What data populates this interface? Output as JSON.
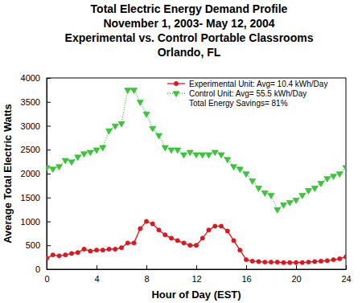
{
  "chart_data": {
    "type": "line",
    "title": "Total Electric Energy Demand Profile",
    "subtitle": [
      "November 1, 2003- May 12, 2004",
      "Experimental vs. Control Portable Classrooms",
      "Orlando, FL"
    ],
    "x_label": "Hour of Day (EST)",
    "y_label": "Average Total Electric Watts",
    "x": [
      0,
      0.5,
      1,
      1.5,
      2,
      2.5,
      3,
      3.5,
      4,
      4.5,
      5,
      5.5,
      6,
      6.5,
      7,
      7.5,
      8,
      8.5,
      9,
      9.5,
      10,
      10.5,
      11,
      11.5,
      12,
      12.5,
      13,
      13.5,
      14,
      14.5,
      15,
      15.5,
      16,
      16.5,
      17,
      17.5,
      18,
      18.5,
      19,
      19.5,
      20,
      20.5,
      21,
      21.5,
      22,
      22.5,
      23,
      23.5,
      24
    ],
    "series": [
      {
        "name": "Experimental Unit: Avg= 10.4 kWh/Day",
        "color": "#e8141c",
        "marker": "circle",
        "line_style": "solid",
        "values": [
          230,
          300,
          280,
          300,
          330,
          350,
          420,
          380,
          400,
          400,
          420,
          420,
          450,
          550,
          550,
          850,
          1000,
          950,
          820,
          720,
          650,
          600,
          550,
          500,
          500,
          650,
          820,
          900,
          900,
          800,
          600,
          400,
          200,
          170,
          160,
          150,
          150,
          150,
          140,
          140,
          140,
          140,
          150,
          160,
          170,
          180,
          200,
          220,
          260
        ]
      },
      {
        "name": "Control Unit: Avg= 55.5 kWh/Day",
        "color": "#33cc33",
        "marker": "triangle-down",
        "line_style": "dotted",
        "values": [
          2130,
          2100,
          2150,
          2280,
          2250,
          2350,
          2420,
          2450,
          2500,
          2550,
          2900,
          3000,
          3050,
          3750,
          3750,
          3500,
          3250,
          2950,
          2800,
          2550,
          2500,
          2500,
          2400,
          2450,
          2400,
          2400,
          2400,
          2450,
          2400,
          2300,
          2150,
          2100,
          2000,
          1850,
          1700,
          1600,
          1550,
          1250,
          1350,
          1400,
          1450,
          1550,
          1650,
          1700,
          1800,
          1900,
          1950,
          2000,
          2130
        ]
      }
    ],
    "annotations": [
      "Total Energy Savings= 81%"
    ],
    "xlim": [
      0,
      24
    ],
    "xticks": [
      0,
      4,
      8,
      12,
      16,
      20,
      24
    ],
    "ylim": [
      0,
      4000
    ],
    "yticks": [
      0,
      500,
      1000,
      1500,
      2000,
      2500,
      3000,
      3500,
      4000
    ],
    "grid": false,
    "legend": "top-right"
  }
}
